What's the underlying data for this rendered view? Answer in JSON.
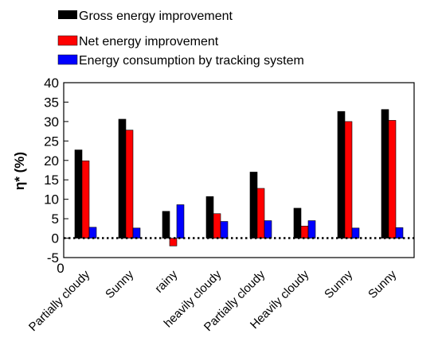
{
  "chart_data": {
    "type": "bar",
    "ylabel": "η* (%)",
    "ylim": [
      -5,
      40
    ],
    "yticks": [
      "-5",
      "0",
      "5",
      "10",
      "15",
      "20",
      "25",
      "30",
      "35",
      "40"
    ],
    "extra_label": "0",
    "categories": [
      "Partially cloudy",
      "Sunny",
      "rainy",
      "heavily cloudy",
      "Partially cloudy",
      "Heavily cloudy",
      "Sunny",
      "Sunny"
    ],
    "series": [
      {
        "name": "Gross energy improvement",
        "color": "#000000",
        "values": [
          22.7,
          30.6,
          6.9,
          10.7,
          17.0,
          7.7,
          32.6,
          33.1
        ]
      },
      {
        "name": "Net energy improvement",
        "color": "#ff0000",
        "values": [
          19.9,
          27.8,
          -2.0,
          6.3,
          12.8,
          3.1,
          30.0,
          30.3
        ]
      },
      {
        "name": "Energy consumption  by tracking system",
        "color": "#0000ff",
        "values": [
          2.8,
          2.6,
          8.6,
          4.3,
          4.5,
          4.5,
          2.6,
          2.7
        ]
      }
    ],
    "reference_line": {
      "y": 0,
      "style": "dotted"
    },
    "legend": "top",
    "grid": false
  }
}
